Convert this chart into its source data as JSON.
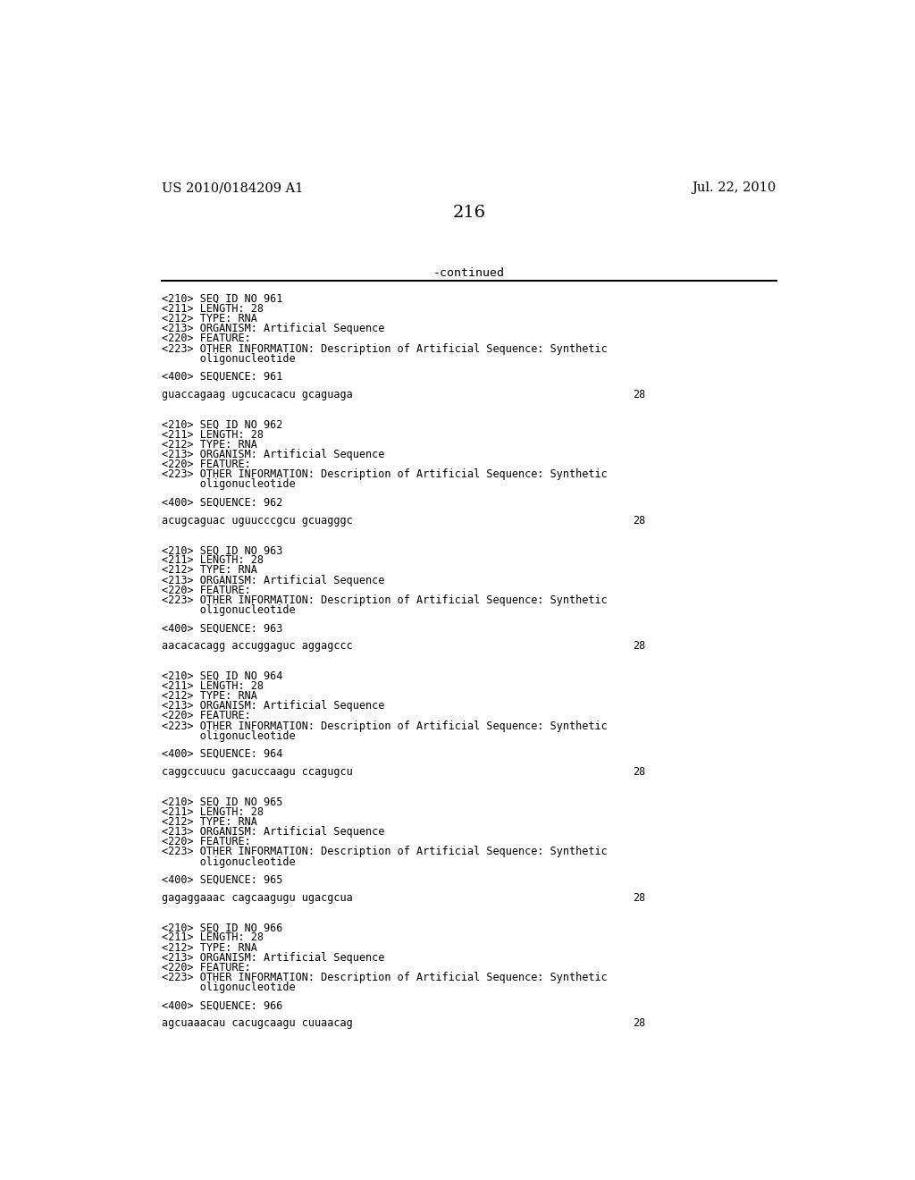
{
  "header_left": "US 2010/0184209 A1",
  "header_right": "Jul. 22, 2010",
  "page_number": "216",
  "continued_label": "-continued",
  "background_color": "#ffffff",
  "text_color": "#000000",
  "sequences": [
    {
      "seq_id": "961",
      "length": "28",
      "type": "RNA",
      "organism": "Artificial Sequence",
      "sequence": "guaccagaag ugcucacacu gcaguaga",
      "seq_length_num": "28"
    },
    {
      "seq_id": "962",
      "length": "28",
      "type": "RNA",
      "organism": "Artificial Sequence",
      "sequence": "acugcaguac uguucccgcu gcuagggc",
      "seq_length_num": "28"
    },
    {
      "seq_id": "963",
      "length": "28",
      "type": "RNA",
      "organism": "Artificial Sequence",
      "sequence": "aacacacagg accuggaguc aggagccc",
      "seq_length_num": "28"
    },
    {
      "seq_id": "964",
      "length": "28",
      "type": "RNA",
      "organism": "Artificial Sequence",
      "sequence": "caggccuucu gacuccaagu ccagugcu",
      "seq_length_num": "28"
    },
    {
      "seq_id": "965",
      "length": "28",
      "type": "RNA",
      "organism": "Artificial Sequence",
      "sequence": "gagaggaaac cagcaagugu ugacgcua",
      "seq_length_num": "28"
    },
    {
      "seq_id": "966",
      "length": "28",
      "type": "RNA",
      "organism": "Artificial Sequence",
      "sequence": "agcuaaacau cacugcaagu cuuaacag",
      "seq_length_num": "28"
    }
  ]
}
